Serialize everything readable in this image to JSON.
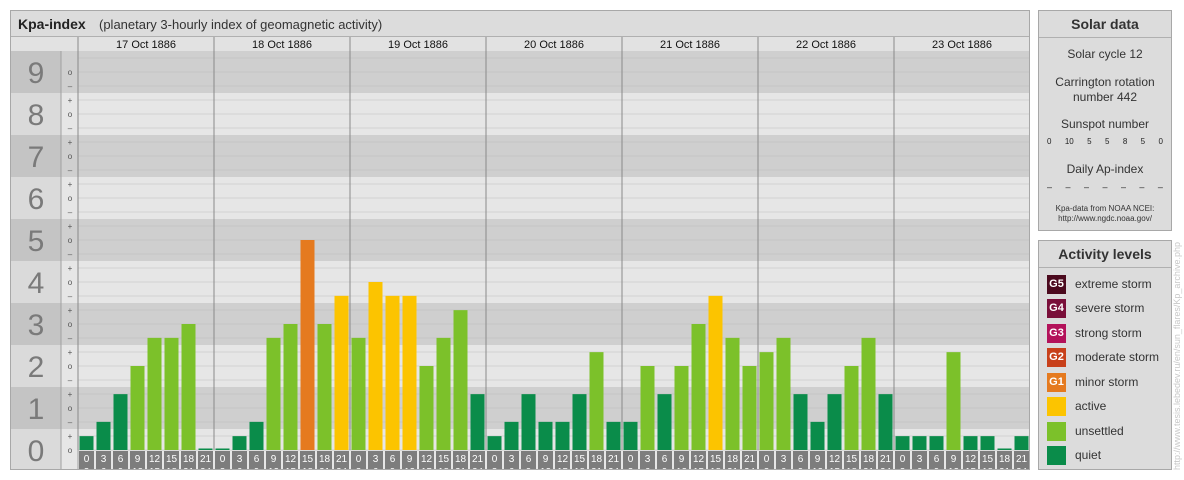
{
  "title": {
    "main": "Kpa-index",
    "subtitle": "(planetary 3-hourly index of geomagnetic activity)"
  },
  "colors": {
    "G5": "#4b0a1e",
    "G4": "#7a0f3a",
    "G3": "#b3125a",
    "G2": "#c8401a",
    "G1": "#e57a1f",
    "active": "#fcc400",
    "unsettled": "#7cc12a",
    "quiet": "#0a8c4a"
  },
  "chart_data": {
    "type": "bar",
    "y_axis_labels": [
      "0",
      "1",
      "2",
      "3",
      "4",
      "5",
      "6",
      "7",
      "8",
      "9"
    ],
    "sub_labels": [
      "o",
      "+",
      "–"
    ],
    "ylim": [
      0,
      9.5
    ],
    "days": [
      "17 Oct 1886",
      "18 Oct 1886",
      "19 Oct 1886",
      "20 Oct 1886",
      "21 Oct 1886",
      "22 Oct 1886",
      "23 Oct 1886"
    ],
    "hour_labels": [
      [
        "0",
        "3"
      ],
      [
        "3",
        "6"
      ],
      [
        "6",
        "9"
      ],
      [
        "9",
        "12"
      ],
      [
        "12",
        "15"
      ],
      [
        "15",
        "18"
      ],
      [
        "18",
        "21"
      ],
      [
        "21",
        "24"
      ]
    ],
    "values": [
      [
        0.33,
        0.67,
        1.33,
        2.0,
        2.67,
        2.67,
        3.0,
        0.0
      ],
      [
        0.0,
        0.33,
        0.67,
        2.67,
        3.0,
        5.0,
        3.0,
        3.67
      ],
      [
        2.67,
        4.0,
        3.67,
        3.67,
        2.0,
        2.67,
        3.33,
        1.33
      ],
      [
        0.33,
        0.67,
        1.33,
        0.67,
        0.67,
        1.33,
        2.33,
        0.67
      ],
      [
        0.67,
        2.0,
        1.33,
        2.0,
        3.0,
        3.67,
        2.67,
        2.0
      ],
      [
        2.33,
        2.67,
        1.33,
        0.67,
        1.33,
        2.0,
        2.67,
        1.33
      ],
      [
        0.33,
        0.33,
        0.33,
        2.33,
        0.33,
        0.33,
        0.0,
        0.33
      ]
    ]
  },
  "solar": {
    "title": "Solar data",
    "cycle": "Solar cycle 12",
    "carrington": "Carrington rotation number 442",
    "sunspot_title": "Sunspot number",
    "sunspot_values": [
      "0",
      "10",
      "5",
      "5",
      "8",
      "5",
      "0"
    ],
    "ap_title": "Daily Ap-index",
    "ap_values": [
      "–",
      "–",
      "–",
      "–",
      "–",
      "–",
      "–"
    ],
    "source": "Kpa-data from NOAA NCEI: http://www.ngdc.noaa.gov/"
  },
  "activity": {
    "title": "Activity levels",
    "levels": [
      {
        "code": "G5",
        "label": "extreme storm"
      },
      {
        "code": "G4",
        "label": "severe storm"
      },
      {
        "code": "G3",
        "label": "strong storm"
      },
      {
        "code": "G2",
        "label": "moderate storm"
      },
      {
        "code": "G1",
        "label": "minor storm"
      },
      {
        "code": "",
        "label": "active"
      },
      {
        "code": "",
        "label": "unsettled"
      },
      {
        "code": "",
        "label": "quiet"
      }
    ]
  },
  "credit": "http://www.tesis.lebedev.ru/en/sun_flares/Kp_archive.php"
}
